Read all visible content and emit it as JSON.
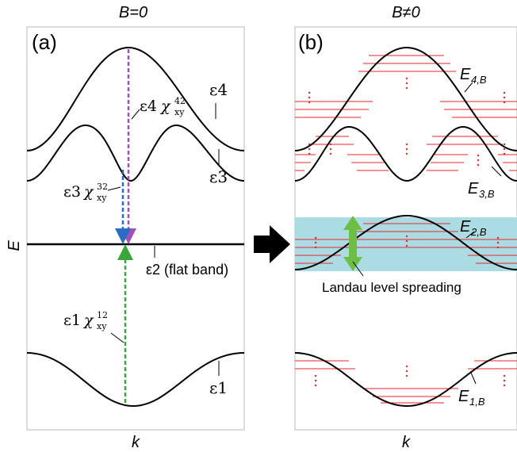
{
  "panel_a": {
    "header": "B=0",
    "label": "(a)",
    "bands": {
      "e4": "ε4",
      "e3": "ε3",
      "e2": "ε2 (flat band)",
      "e1": "ε1"
    },
    "transitions": {
      "t42": {
        "eps": "ε4",
        "chi": "χ",
        "sup": "42",
        "sub": "xy"
      },
      "t32": {
        "eps": "ε3",
        "chi": "χ",
        "sup": "32",
        "sub": "xy"
      },
      "t12": {
        "eps": "ε1",
        "chi": "χ",
        "sup": "12",
        "sub": "xy"
      }
    },
    "xlabel": "k"
  },
  "panel_b": {
    "header": "B≠0",
    "label": "(b)",
    "bands": {
      "e4": "E4,B",
      "e3": "E3,B",
      "e2": "E2,B",
      "e1": "E1,B"
    },
    "annotation": "Landau level spreading",
    "xlabel": "k"
  },
  "ylabel": "E",
  "colors": {
    "band": "#000000",
    "landau": "#e8272b",
    "transition42": "#a24fb6",
    "transition32": "#2b6cc4",
    "transition12": "#3aa73a",
    "highlight": "#abdbe3",
    "arrow": "#6cbf44"
  }
}
